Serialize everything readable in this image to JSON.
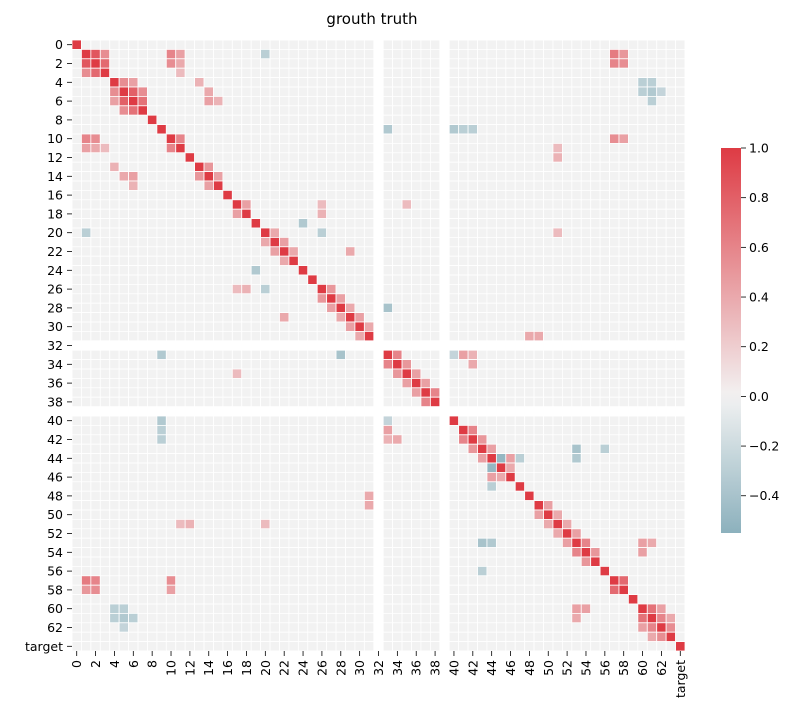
{
  "chart_data": {
    "type": "heatmap",
    "title": "grouth truth",
    "xlabel": "",
    "ylabel": "",
    "n": 65,
    "row_labels": [
      "0",
      "",
      "2",
      "",
      "4",
      "",
      "6",
      "",
      "8",
      "",
      "10",
      "",
      "12",
      "",
      "14",
      "",
      "16",
      "",
      "18",
      "",
      "20",
      "",
      "22",
      "",
      "24",
      "",
      "26",
      "",
      "28",
      "",
      "30",
      "",
      "32",
      "",
      "34",
      "",
      "36",
      "",
      "38",
      "",
      "40",
      "",
      "42",
      "",
      "44",
      "",
      "46",
      "",
      "48",
      "",
      "50",
      "",
      "52",
      "",
      "54",
      "",
      "56",
      "",
      "58",
      "",
      "60",
      "",
      "62",
      "",
      "target"
    ],
    "col_labels": [
      "0",
      "",
      "2",
      "",
      "4",
      "",
      "6",
      "",
      "8",
      "",
      "10",
      "",
      "12",
      "",
      "14",
      "",
      "16",
      "",
      "18",
      "",
      "20",
      "",
      "22",
      "",
      "24",
      "",
      "26",
      "",
      "28",
      "",
      "30",
      "",
      "32",
      "",
      "34",
      "",
      "36",
      "",
      "38",
      "",
      "40",
      "",
      "42",
      "",
      "44",
      "",
      "46",
      "",
      "48",
      "",
      "50",
      "",
      "52",
      "",
      "54",
      "",
      "56",
      "",
      "58",
      "",
      "60",
      "",
      "62",
      "",
      "target"
    ],
    "blank_indices": [
      32,
      39
    ],
    "vmin": -0.55,
    "vmax": 1.0,
    "colorbar": {
      "ticks": [
        1.0,
        0.8,
        0.6,
        0.4,
        0.2,
        0.0,
        -0.2,
        -0.4
      ],
      "tick_labels": [
        "1.0",
        "0.8",
        "0.6",
        "0.4",
        "0.2",
        "0.0",
        "−0.2",
        "−0.4"
      ]
    },
    "colors": {
      "positive": "#de3b44",
      "center": "#f2f2f2",
      "negative": "#8cb1bd"
    },
    "cells": [
      {
        "i": 1,
        "j": 2,
        "v": 0.85
      },
      {
        "i": 1,
        "j": 3,
        "v": 0.55
      },
      {
        "i": 2,
        "j": 3,
        "v": 0.75
      },
      {
        "i": 1,
        "j": 10,
        "v": 0.6
      },
      {
        "i": 1,
        "j": 11,
        "v": 0.45
      },
      {
        "i": 2,
        "j": 10,
        "v": 0.55
      },
      {
        "i": 2,
        "j": 11,
        "v": 0.4
      },
      {
        "i": 10,
        "j": 11,
        "v": 0.6
      },
      {
        "i": 10,
        "j": 57,
        "v": 0.55
      },
      {
        "i": 2,
        "j": 57,
        "v": 0.6
      },
      {
        "i": 1,
        "j": 57,
        "v": 0.65
      },
      {
        "i": 1,
        "j": 58,
        "v": 0.5
      },
      {
        "i": 2,
        "j": 58,
        "v": 0.55
      },
      {
        "i": 10,
        "j": 58,
        "v": 0.45
      },
      {
        "i": 57,
        "j": 58,
        "v": 0.75
      },
      {
        "i": 4,
        "j": 5,
        "v": 0.55
      },
      {
        "i": 5,
        "j": 6,
        "v": 0.8
      },
      {
        "i": 6,
        "j": 7,
        "v": 0.7
      },
      {
        "i": 4,
        "j": 6,
        "v": 0.45
      },
      {
        "i": 5,
        "j": 7,
        "v": 0.55
      },
      {
        "i": 4,
        "j": 13,
        "v": 0.35
      },
      {
        "i": 5,
        "j": 14,
        "v": 0.4
      },
      {
        "i": 6,
        "j": 14,
        "v": 0.45
      },
      {
        "i": 6,
        "j": 15,
        "v": 0.35
      },
      {
        "i": 13,
        "j": 14,
        "v": 0.5
      },
      {
        "i": 14,
        "j": 15,
        "v": 0.45
      },
      {
        "i": 17,
        "j": 18,
        "v": 0.45
      },
      {
        "i": 18,
        "j": 26,
        "v": 0.35
      },
      {
        "i": 17,
        "j": 26,
        "v": 0.3
      },
      {
        "i": 20,
        "j": 21,
        "v": 0.4
      },
      {
        "i": 21,
        "j": 22,
        "v": 0.45
      },
      {
        "i": 22,
        "j": 23,
        "v": 0.4
      },
      {
        "i": 26,
        "j": 27,
        "v": 0.5
      },
      {
        "i": 27,
        "j": 28,
        "v": 0.45
      },
      {
        "i": 28,
        "j": 29,
        "v": 0.4
      },
      {
        "i": 29,
        "j": 30,
        "v": 0.45
      },
      {
        "i": 30,
        "j": 31,
        "v": 0.4
      },
      {
        "i": 33,
        "j": 34,
        "v": 0.6
      },
      {
        "i": 34,
        "j": 35,
        "v": 0.5
      },
      {
        "i": 35,
        "j": 36,
        "v": 0.45
      },
      {
        "i": 36,
        "j": 37,
        "v": 0.45
      },
      {
        "i": 37,
        "j": 38,
        "v": 0.6
      },
      {
        "i": 33,
        "j": 41,
        "v": 0.45
      },
      {
        "i": 34,
        "j": 42,
        "v": 0.4
      },
      {
        "i": 33,
        "j": 42,
        "v": 0.35
      },
      {
        "i": 41,
        "j": 42,
        "v": 0.6
      },
      {
        "i": 42,
        "j": 43,
        "v": 0.5
      },
      {
        "i": 43,
        "j": 44,
        "v": 0.45
      },
      {
        "i": 44,
        "j": 45,
        "v": -0.5
      },
      {
        "i": 44,
        "j": 46,
        "v": 0.45
      },
      {
        "i": 45,
        "j": 46,
        "v": 0.4
      },
      {
        "i": 43,
        "j": 53,
        "v": -0.4
      },
      {
        "i": 44,
        "j": 53,
        "v": -0.35
      },
      {
        "i": 49,
        "j": 50,
        "v": 0.45
      },
      {
        "i": 50,
        "j": 51,
        "v": 0.4
      },
      {
        "i": 51,
        "j": 52,
        "v": 0.4
      },
      {
        "i": 52,
        "j": 53,
        "v": 0.45
      },
      {
        "i": 53,
        "j": 54,
        "v": 0.6
      },
      {
        "i": 54,
        "j": 55,
        "v": 0.5
      },
      {
        "i": 53,
        "j": 60,
        "v": 0.45
      },
      {
        "i": 54,
        "j": 60,
        "v": 0.45
      },
      {
        "i": 53,
        "j": 61,
        "v": 0.4
      },
      {
        "i": 60,
        "j": 61,
        "v": 0.7
      },
      {
        "i": 61,
        "j": 62,
        "v": 0.6
      },
      {
        "i": 62,
        "j": 63,
        "v": 0.55
      },
      {
        "i": 60,
        "j": 62,
        "v": 0.45
      },
      {
        "i": 61,
        "j": 63,
        "v": 0.4
      },
      {
        "i": 4,
        "j": 60,
        "v": -0.3
      },
      {
        "i": 4,
        "j": 61,
        "v": -0.3
      },
      {
        "i": 5,
        "j": 60,
        "v": -0.3
      },
      {
        "i": 5,
        "j": 61,
        "v": -0.35
      },
      {
        "i": 5,
        "j": 62,
        "v": -0.25
      },
      {
        "i": 6,
        "j": 61,
        "v": -0.3
      },
      {
        "i": 19,
        "j": 24,
        "v": -0.35
      },
      {
        "i": 20,
        "j": 26,
        "v": -0.3
      },
      {
        "i": 1,
        "j": 20,
        "v": -0.3
      },
      {
        "i": 33,
        "j": 40,
        "v": -0.25
      },
      {
        "i": 28,
        "j": 33,
        "v": -0.4
      },
      {
        "i": 9,
        "j": 33,
        "v": -0.35
      },
      {
        "i": 9,
        "j": 40,
        "v": -0.35
      },
      {
        "i": 9,
        "j": 41,
        "v": -0.3
      },
      {
        "i": 9,
        "j": 42,
        "v": -0.3
      },
      {
        "i": 47,
        "j": 44,
        "v": -0.3
      },
      {
        "i": 43,
        "j": 56,
        "v": -0.3
      },
      {
        "i": 12,
        "j": 51,
        "v": 0.35
      },
      {
        "i": 11,
        "j": 51,
        "v": 0.3
      },
      {
        "i": 31,
        "j": 49,
        "v": 0.4
      },
      {
        "i": 32,
        "j": 48,
        "v": 0.0
      },
      {
        "i": 20,
        "j": 51,
        "v": 0.3
      },
      {
        "i": 17,
        "j": 35,
        "v": 0.3
      },
      {
        "i": 48,
        "j": 31,
        "v": 0.4
      },
      {
        "i": 22,
        "j": 29,
        "v": 0.4
      },
      {
        "i": 3,
        "j": 11,
        "v": 0.3
      }
    ]
  }
}
